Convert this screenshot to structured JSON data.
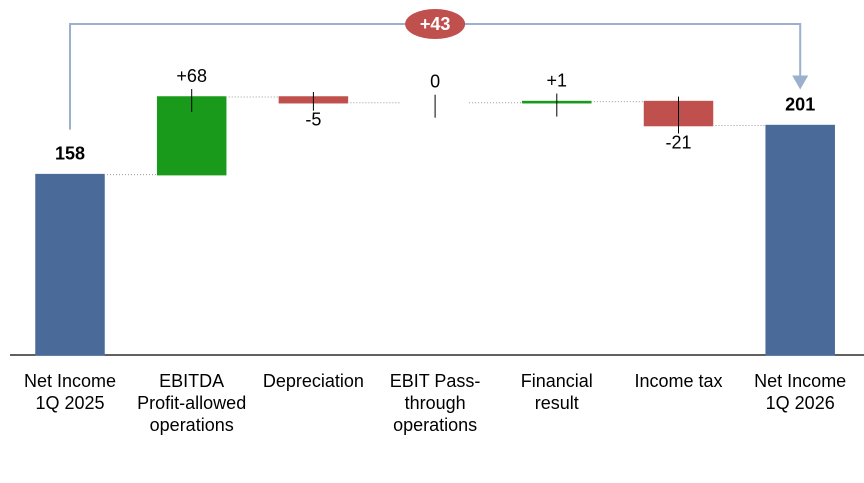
{
  "chart_data": {
    "type": "waterfall",
    "categories": [
      "Net Income 1Q 2025",
      "EBITDA Profit-allowed operations",
      "Depreciation",
      "EBIT Pass-through operations",
      "Financial result",
      "Income tax",
      "Net Income 1Q 2026"
    ],
    "values": [
      158,
      68,
      -5,
      0,
      1,
      -21,
      201
    ],
    "value_labels": [
      "158",
      "+68",
      "-5",
      "0",
      "+1",
      "-21",
      "201"
    ],
    "measure": [
      "total",
      "relative",
      "relative",
      "relative",
      "relative",
      "relative",
      "total"
    ],
    "colors": {
      "total": "#4a6a9a",
      "increase": "#1a9a1a",
      "decrease": "#c0504d"
    },
    "annotation": {
      "value": 43,
      "label": "+43"
    }
  }
}
